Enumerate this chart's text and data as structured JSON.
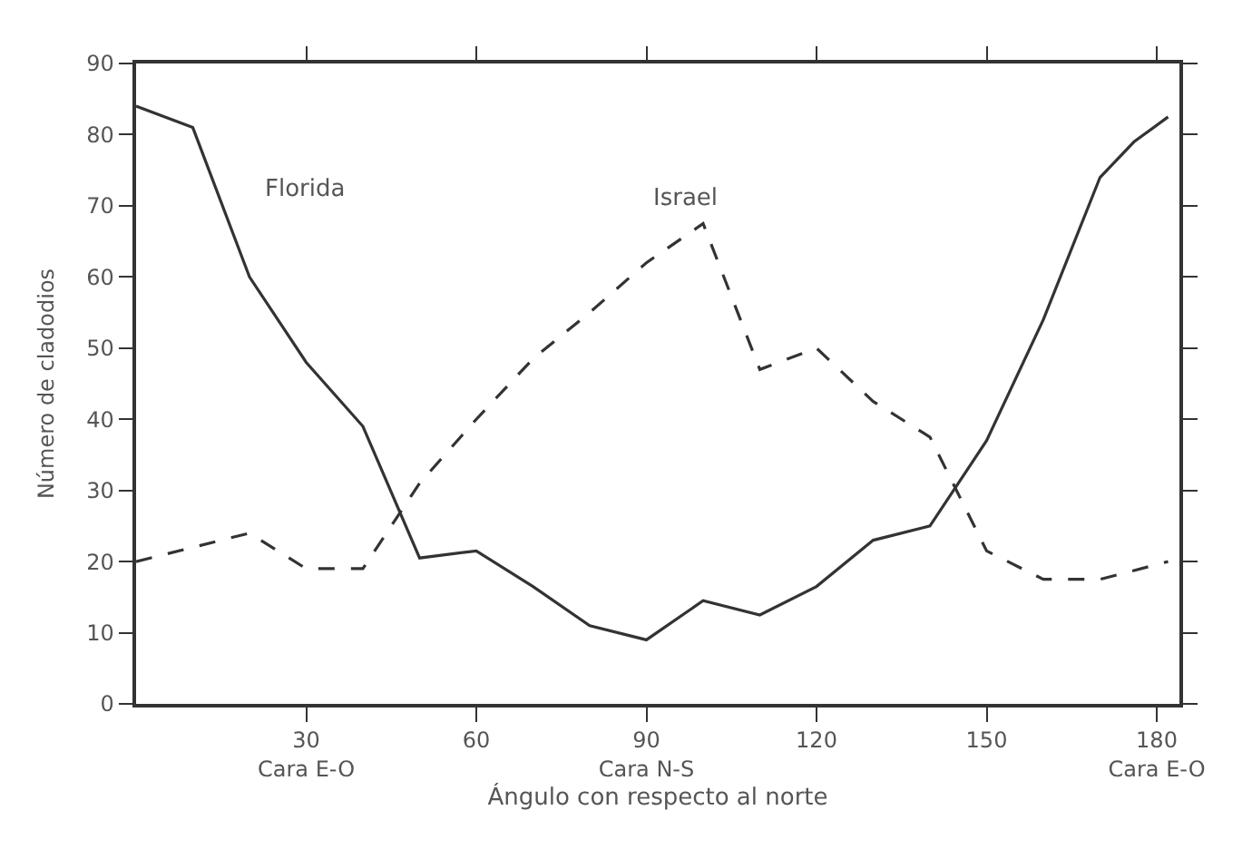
{
  "chart_data": {
    "type": "line",
    "xlabel": "Ángulo con respecto al norte",
    "ylabel": "Número de cladodios",
    "x": [
      0,
      10,
      20,
      30,
      40,
      50,
      60,
      70,
      80,
      90,
      100,
      110,
      120,
      130,
      140,
      150,
      160,
      170,
      176,
      182
    ],
    "series": [
      {
        "name": "Florida",
        "color": "#333333",
        "line_style": "solid",
        "values": [
          84,
          81,
          60,
          48,
          39,
          20.5,
          21.5,
          16.5,
          11,
          9,
          14.5,
          12.5,
          16.5,
          23,
          25,
          37,
          54,
          74,
          79,
          82.5
        ]
      },
      {
        "name": "Israel",
        "color": "#333333",
        "line_style": "dashed",
        "values": [
          20,
          22,
          24,
          19,
          19,
          31,
          40,
          48.5,
          55,
          62,
          67.5,
          47,
          50,
          42.5,
          37.5,
          21.5,
          17.5,
          17.5,
          null,
          20
        ]
      }
    ],
    "xlim": [
      0,
      184
    ],
    "ylim": [
      0,
      90
    ],
    "xticks": [
      {
        "value": 30,
        "label": "30\nCara E-O"
      },
      60,
      {
        "value": 90,
        "label": "90\nCara N-S"
      },
      120,
      150,
      {
        "value": 180,
        "label": "180\nCara E-O"
      }
    ],
    "yticks": [
      0,
      10,
      20,
      30,
      40,
      50,
      60,
      70,
      80,
      90
    ],
    "legend": false,
    "marker": "none"
  }
}
